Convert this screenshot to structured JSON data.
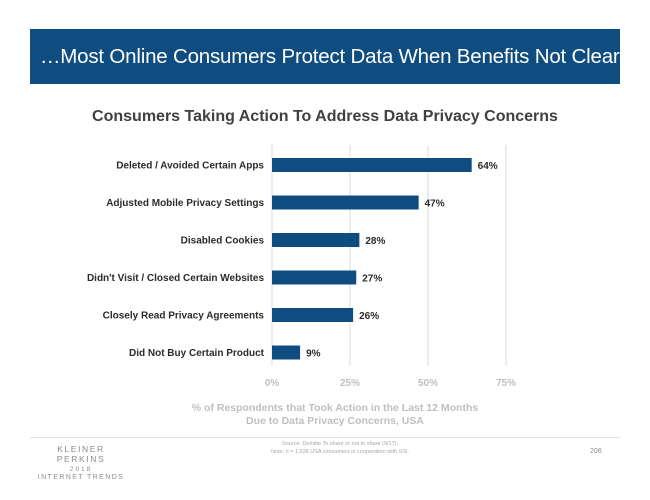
{
  "header": {
    "title": "…Most Online Consumers Protect Data When Benefits Not Clear"
  },
  "chart_data": {
    "type": "bar",
    "orientation": "horizontal",
    "title": "Consumers Taking Action To Address Data Privacy Concerns",
    "categories": [
      "Deleted / Avoided Certain Apps",
      "Adjusted Mobile Privacy Settings",
      "Disabled Cookies",
      "Didn't Visit / Closed Certain Websites",
      "Closely Read Privacy Agreements",
      "Did Not Buy Certain Product"
    ],
    "values": [
      64,
      47,
      28,
      27,
      26,
      9
    ],
    "value_labels": [
      "64%",
      "47%",
      "28%",
      "27%",
      "26%",
      "9%"
    ],
    "xlabel": "% of Respondents that Took Action in the Last 12 Months Due to Data Privacy Concerns, USA",
    "xlim": [
      0,
      75
    ],
    "ticks": [
      0,
      25,
      50,
      75
    ],
    "tick_labels": [
      "0%",
      "25%",
      "50%",
      "75%"
    ],
    "grid": true,
    "bar_color": "#0f4c7f"
  },
  "footer": {
    "logo_name": "KLEINER PERKINS",
    "logo_year": "2018",
    "logo_sub": "INTERNET TRENDS",
    "source_line1": "Source: Deloitte To share or not to share (9/17).",
    "source_line2": "Note: n = 1,538 USA consumers in cooperation with SSI.",
    "page_number": "206"
  }
}
